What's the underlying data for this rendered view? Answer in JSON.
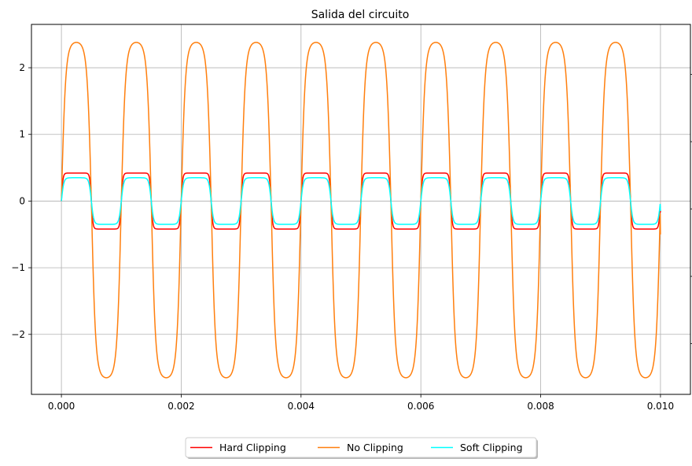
{
  "chart_data": {
    "type": "line",
    "title": "Salida del circuito",
    "xlabel": "",
    "ylabel": "",
    "xlim": [
      -0.0005,
      0.0105
    ],
    "ylim": [
      -2.9,
      2.65
    ],
    "x_ticks": [
      0.0,
      0.002,
      0.004,
      0.006,
      0.008,
      0.01
    ],
    "x_tick_labels": [
      "0.000",
      "0.002",
      "0.004",
      "0.006",
      "0.008",
      "0.010"
    ],
    "y_ticks": [
      -2,
      -1,
      0,
      1,
      2
    ],
    "y_tick_labels": [
      "−2",
      "−1",
      "0",
      "1",
      "2"
    ],
    "grid": true,
    "legend_position": "bottom-center",
    "x_range": [
      0.0,
      0.01
    ],
    "series": [
      {
        "name": "Hard Clipping",
        "color": "#ff0000",
        "amplitude_pos": 0.42,
        "amplitude_neg": -0.42,
        "frequency_hz": 1000,
        "end_value": -0.17
      },
      {
        "name": "No Clipping",
        "color": "#ff7f0e",
        "amplitude_pos": 2.38,
        "amplitude_neg": -2.65,
        "frequency_hz": 1000,
        "end_value": -0.5
      },
      {
        "name": "Soft Clipping",
        "color": "#00ffff",
        "amplitude_pos": 0.35,
        "amplitude_neg": -0.35,
        "frequency_hz": 1000,
        "end_value": -0.15
      }
    ]
  }
}
